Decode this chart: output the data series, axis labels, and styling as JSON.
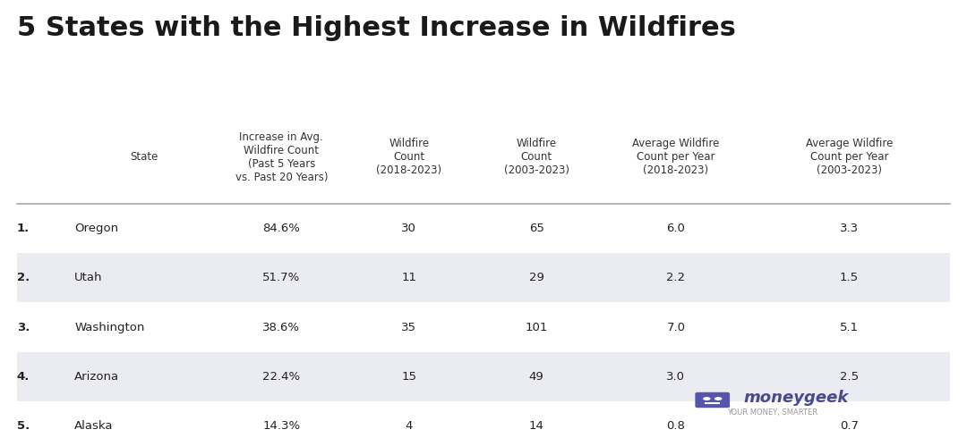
{
  "title": "5 States with the Highest Increase in Wildfires",
  "col_headers": [
    "State",
    "Increase in Avg.\nWildfire Count\n(Past 5 Years\nvs. Past 20 Years)",
    "Wildfire\nCount\n(2018-2023)",
    "Wildfire\nCount\n(2003-2023)",
    "Average Wildfire\nCount per Year\n(2018-2023)",
    "Average Wildfire\nCount per Year\n(2003-2023)"
  ],
  "rows": [
    [
      "1.",
      "Oregon",
      "84.6%",
      "30",
      "65",
      "6.0",
      "3.3"
    ],
    [
      "2.",
      "Utah",
      "51.7%",
      "11",
      "29",
      "2.2",
      "1.5"
    ],
    [
      "3.",
      "Washington",
      "38.6%",
      "35",
      "101",
      "7.0",
      "5.1"
    ],
    [
      "4.",
      "Arizona",
      "22.4%",
      "15",
      "49",
      "3.0",
      "2.5"
    ],
    [
      "5.",
      "Alaska",
      "14.3%",
      "4",
      "14",
      "0.8",
      "0.7"
    ]
  ],
  "shaded_rows": [
    1,
    3
  ],
  "bg_color": "#ffffff",
  "shaded_color": "#ebebf2",
  "title_color": "#1a1a1a",
  "header_color": "#333333",
  "cell_color": "#222222",
  "divider_color": "#aaaaaa",
  "moneygeek_text": "moneygeek",
  "moneygeek_sub": "YOUR MONEY, SMARTER",
  "moneygeek_color": "#4a4a8a",
  "moneygeek_sub_color": "#999999",
  "icon_color": "#5555aa"
}
